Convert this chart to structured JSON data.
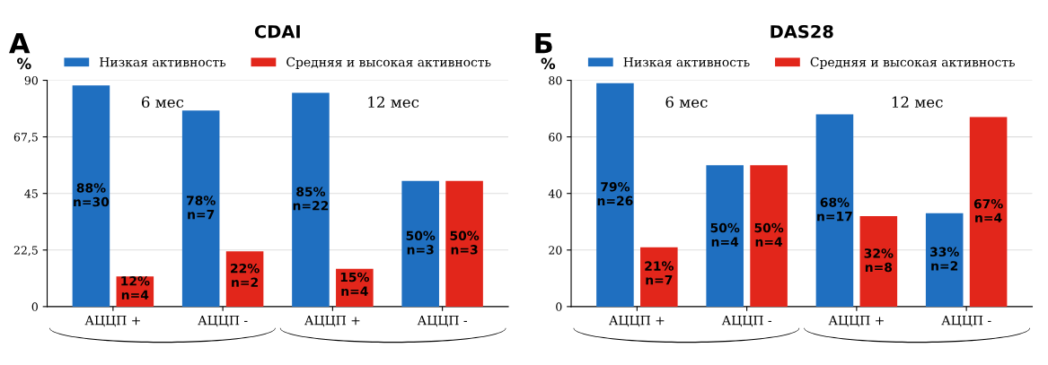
{
  "chart_data": [
    {
      "type": "bar",
      "title": "CDAI",
      "ylabel": "%",
      "categories": [
        "АЦЦП +",
        "АЦЦП -",
        "АЦЦП +",
        "АЦЦП -"
      ],
      "series": [
        {
          "name": "Низкая активность",
          "color": "#1f6fc0",
          "values": [
            88,
            78,
            85,
            50
          ],
          "value_labels": [
            "88%\nn=30",
            "78%\nn=7",
            "85%\nn=22",
            "50%\nn=3"
          ]
        },
        {
          "name": "Средняя и высокая активность",
          "color": "#e2261b",
          "values": [
            12,
            22,
            15,
            50
          ],
          "value_labels": [
            "12%\nn=4",
            "22%\nn=2",
            "15%\nn=4",
            "50%\nn=3"
          ]
        }
      ],
      "ylim": [
        0,
        90
      ],
      "yticks": [
        0,
        {
          "value": 22.5,
          "label": "22,5"
        },
        45,
        {
          "value": 67.5,
          "label": "67,5"
        },
        90
      ],
      "grid": "y",
      "legend": "top",
      "annotations": [
        "А",
        "6 мес",
        "12 мес"
      ]
    },
    {
      "type": "bar",
      "title": "DAS28",
      "ylabel": "%",
      "categories": [
        "АЦЦП +",
        "АЦЦП -",
        "АЦЦП +",
        "АЦЦП -"
      ],
      "series": [
        {
          "name": "Низкая активность",
          "color": "#1f6fc0",
          "values": [
            79,
            50,
            68,
            33
          ],
          "value_labels": [
            "79%\nn=26",
            "50%\nn=4",
            "68%\nn=17",
            "33%\nn=2"
          ]
        },
        {
          "name": "Средняя и высокая активность",
          "color": "#e2261b",
          "values": [
            21,
            50,
            32,
            67
          ],
          "value_labels": [
            "21%\nn=7",
            "50%\nn=4",
            "32%\nn=8",
            "67%\nn=4"
          ]
        }
      ],
      "ylim": [
        0,
        80
      ],
      "yticks": [
        0,
        20,
        40,
        60,
        80
      ],
      "grid": "y",
      "legend": "top",
      "annotations": [
        "Б",
        "6 мес",
        "12 мес"
      ]
    }
  ]
}
